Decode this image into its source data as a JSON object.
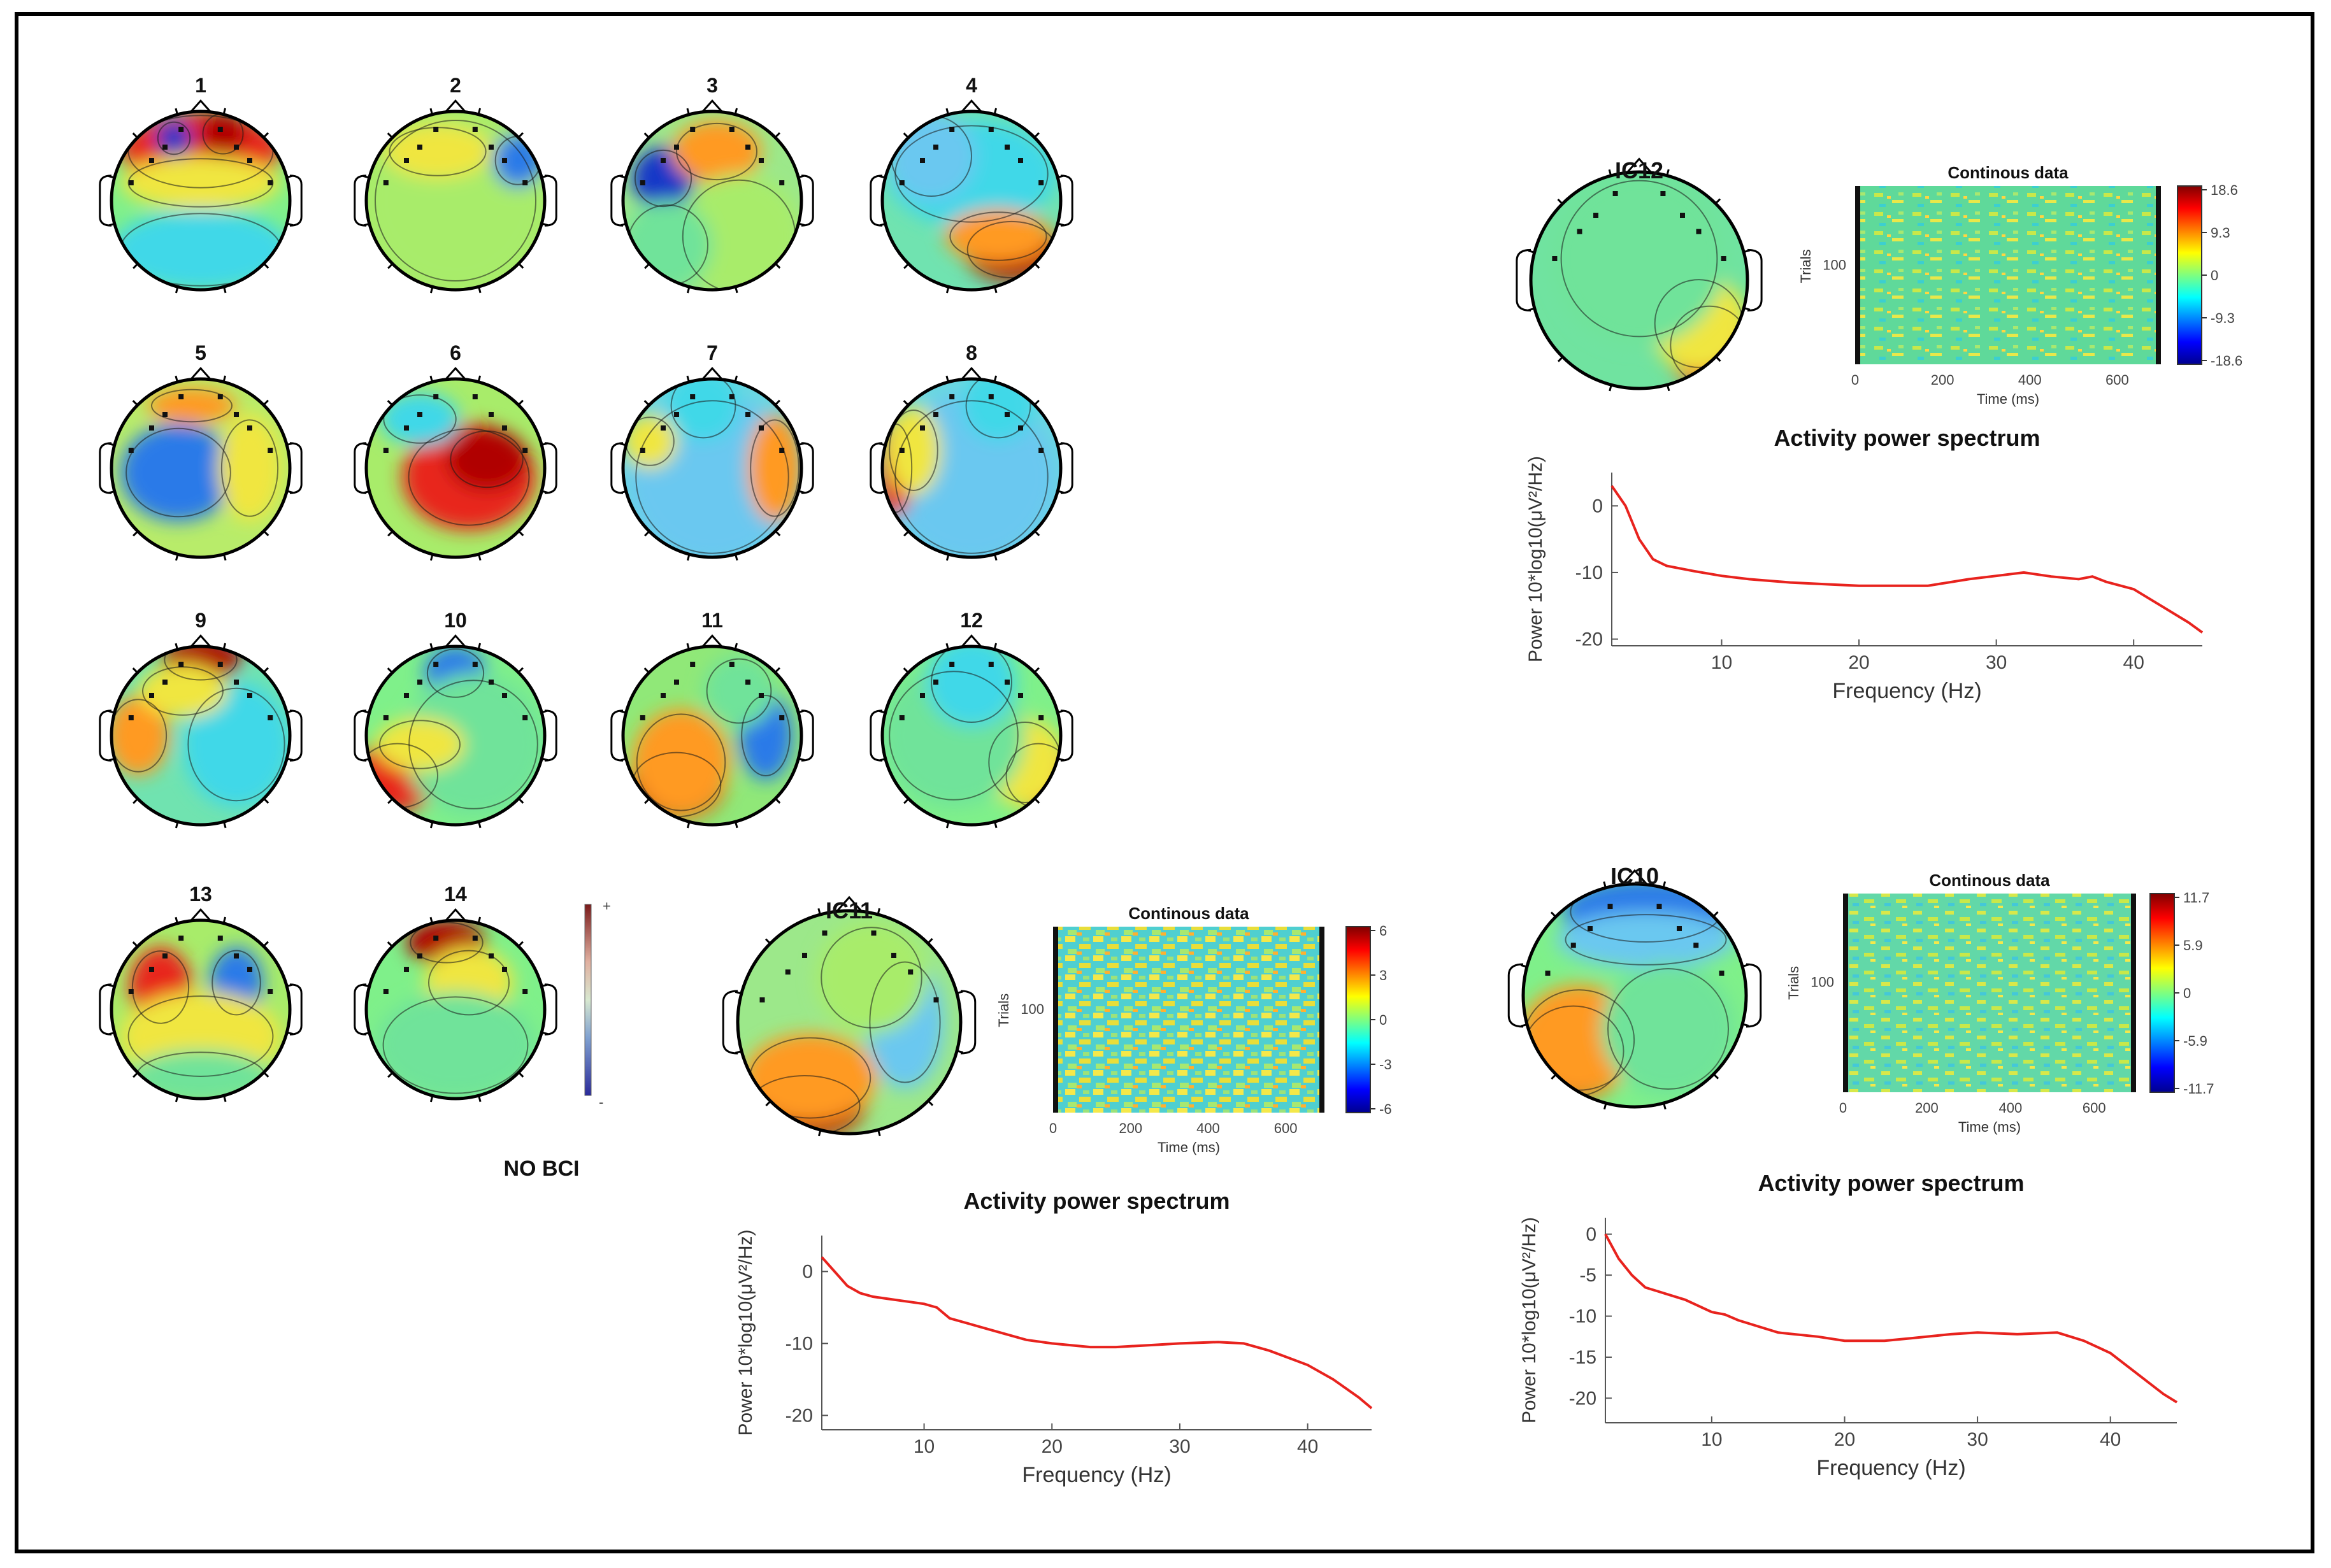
{
  "figure": {
    "condition_label": "NO BCI",
    "colorbar_plus": "+",
    "colorbar_minus": "-"
  },
  "topomaps": [
    {
      "label": "1",
      "pattern": "frontal positive, posterior negative"
    },
    {
      "label": "2",
      "pattern": "mostly neutral, right frontal negative"
    },
    {
      "label": "3",
      "pattern": "left frontal negative"
    },
    {
      "label": "4",
      "pattern": "right posterior positive"
    },
    {
      "label": "5",
      "pattern": "left central negative"
    },
    {
      "label": "6",
      "pattern": "central right positive"
    },
    {
      "label": "7",
      "pattern": "broad negative"
    },
    {
      "label": "8",
      "pattern": "broad negative, left edge positive"
    },
    {
      "label": "9",
      "pattern": "frontal positive, left temporal positive"
    },
    {
      "label": "10",
      "pattern": "left posterior positive"
    },
    {
      "label": "11",
      "pattern": "left posterior positive, right negative"
    },
    {
      "label": "12",
      "pattern": "right posterior positive"
    },
    {
      "label": "13",
      "pattern": "left frontal positive, right frontal negative"
    },
    {
      "label": "14",
      "pattern": "frontal positive"
    }
  ],
  "chart_data": [
    {
      "id": "IC12",
      "type": "heatmap",
      "topo_label": "IC12",
      "title": "Continous data",
      "xlabel": "Time (ms)",
      "ylabel": "Trials",
      "x_ticks": [
        "0",
        "200",
        "400",
        "600"
      ],
      "y_ticks": [
        "100"
      ],
      "xlim": [
        0,
        700
      ],
      "colorbar_ticks": [
        "18.6",
        "9.3",
        "0",
        "-9.3",
        "-18.6"
      ],
      "colorbar_range": [
        -18.6,
        18.6
      ]
    },
    {
      "id": "IC12-spectrum",
      "type": "line",
      "title": "Activity power spectrum",
      "xlabel": "Frequency (Hz)",
      "ylabel": "Power 10*log10(μV²/Hz)",
      "x_ticks": [
        "10",
        "20",
        "30",
        "40"
      ],
      "y_ticks": [
        "0",
        "-10",
        "-20"
      ],
      "xlim": [
        2,
        45
      ],
      "ylim": [
        -21,
        5
      ],
      "series": [
        {
          "name": "spectrum",
          "color": "#e8231e",
          "x": [
            2,
            3,
            4,
            5,
            6,
            8,
            10,
            12,
            15,
            18,
            20,
            22,
            25,
            28,
            30,
            32,
            34,
            36,
            37,
            38,
            40,
            42,
            44,
            45
          ],
          "y": [
            3,
            0,
            -5,
            -8,
            -9,
            -9.8,
            -10.5,
            -11,
            -11.5,
            -11.8,
            -12,
            -12,
            -12,
            -11,
            -10.5,
            -10,
            -10.6,
            -11,
            -10.6,
            -11.4,
            -12.5,
            -15,
            -17.5,
            -19
          ]
        }
      ]
    },
    {
      "id": "IC11",
      "type": "heatmap",
      "topo_label": "IC11",
      "title": "Continous data",
      "xlabel": "Time (ms)",
      "ylabel": "Trials",
      "x_ticks": [
        "0",
        "200",
        "400",
        "600"
      ],
      "y_ticks": [
        "100"
      ],
      "xlim": [
        0,
        700
      ],
      "colorbar_ticks": [
        "6",
        "3",
        "0",
        "-3",
        "-6"
      ],
      "colorbar_range": [
        -6,
        6
      ]
    },
    {
      "id": "IC11-spectrum",
      "type": "line",
      "title": "Activity power spectrum",
      "xlabel": "Frequency (Hz)",
      "ylabel": "Power 10*log10(μV²/Hz)",
      "x_ticks": [
        "10",
        "20",
        "30",
        "40"
      ],
      "y_ticks": [
        "0",
        "-10",
        "-20"
      ],
      "xlim": [
        2,
        45
      ],
      "ylim": [
        -22,
        5
      ],
      "series": [
        {
          "name": "spectrum",
          "color": "#e8231e",
          "x": [
            2,
            3,
            4,
            5,
            6,
            8,
            10,
            11,
            12,
            15,
            18,
            20,
            23,
            25,
            28,
            30,
            33,
            35,
            37,
            40,
            42,
            44,
            45
          ],
          "y": [
            2,
            0,
            -2,
            -3,
            -3.5,
            -4,
            -4.5,
            -5,
            -6.5,
            -8,
            -9.5,
            -10,
            -10.5,
            -10.5,
            -10.2,
            -10,
            -9.8,
            -10,
            -11,
            -13,
            -15,
            -17.5,
            -19
          ]
        }
      ]
    },
    {
      "id": "IC10",
      "type": "heatmap",
      "topo_label": "IC10",
      "title": "Continous data",
      "xlabel": "Time (ms)",
      "ylabel": "Trials",
      "x_ticks": [
        "0",
        "200",
        "400",
        "600"
      ],
      "y_ticks": [
        "100"
      ],
      "xlim": [
        0,
        700
      ],
      "colorbar_ticks": [
        "11.7",
        "5.9",
        "0",
        "-5.9",
        "-11.7"
      ],
      "colorbar_range": [
        -11.7,
        11.7
      ]
    },
    {
      "id": "IC10-spectrum",
      "type": "line",
      "title": "Activity power spectrum",
      "xlabel": "Frequency (Hz)",
      "ylabel": "Power 10*log10(μV²/Hz)",
      "x_ticks": [
        "10",
        "20",
        "30",
        "40"
      ],
      "y_ticks": [
        "0",
        "-5",
        "-10",
        "-15",
        "-20"
      ],
      "xlim": [
        2,
        45
      ],
      "ylim": [
        -23,
        2
      ],
      "series": [
        {
          "name": "spectrum",
          "color": "#e8231e",
          "x": [
            2,
            3,
            4,
            5,
            6,
            8,
            10,
            11,
            12,
            15,
            18,
            20,
            23,
            25,
            28,
            30,
            33,
            36,
            38,
            40,
            42,
            44,
            45
          ],
          "y": [
            0,
            -3,
            -5,
            -6.5,
            -7,
            -8,
            -9.5,
            -9.8,
            -10.5,
            -12,
            -12.5,
            -13,
            -13,
            -12.7,
            -12.2,
            -12,
            -12.2,
            -12,
            -13,
            -14.5,
            -17,
            -19.5,
            -20.5
          ]
        }
      ]
    }
  ]
}
